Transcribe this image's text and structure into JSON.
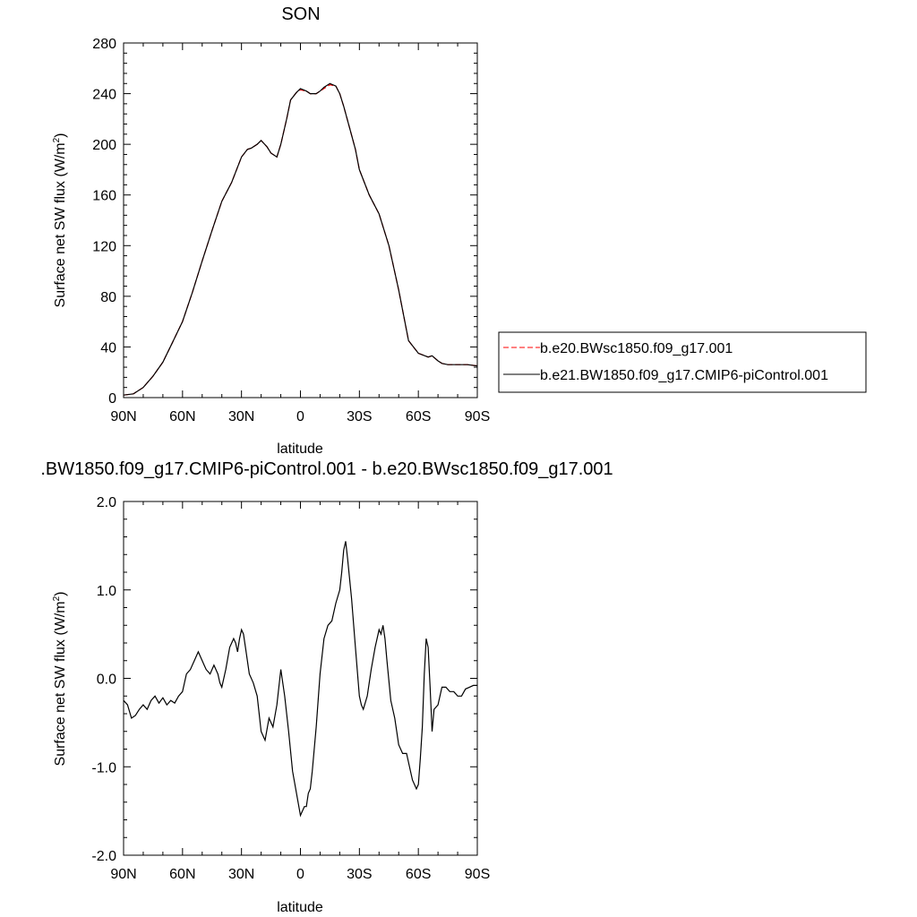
{
  "chart_data": [
    {
      "type": "line",
      "title": "SON",
      "xlabel": "latitude",
      "ylabel_main": "Surface net SW flux (W/m",
      "ylabel_sup": "2",
      "ylabel_close": ")",
      "xlim": [
        90,
        -90
      ],
      "ylim": [
        0,
        280
      ],
      "x_ticks": [
        {
          "value": 90,
          "label": "90N"
        },
        {
          "value": 60,
          "label": "60N"
        },
        {
          "value": 30,
          "label": "30N"
        },
        {
          "value": 0,
          "label": "0"
        },
        {
          "value": -30,
          "label": "30S"
        },
        {
          "value": -60,
          "label": "60S"
        },
        {
          "value": -90,
          "label": "90S"
        }
      ],
      "y_ticks": [
        {
          "value": 0,
          "label": "0"
        },
        {
          "value": 40,
          "label": "40"
        },
        {
          "value": 80,
          "label": "80"
        },
        {
          "value": 120,
          "label": "120"
        },
        {
          "value": 160,
          "label": "160"
        },
        {
          "value": 200,
          "label": "200"
        },
        {
          "value": 240,
          "label": "240"
        },
        {
          "value": 280,
          "label": "280"
        }
      ],
      "legend_placement": "right",
      "series": [
        {
          "name": "b.e20.BWsc1850.f09_g17.001",
          "color": "#ff0000",
          "dash": true,
          "x": [
            90,
            85,
            80,
            75,
            70,
            65,
            60,
            55,
            50,
            45,
            40,
            35,
            30,
            27,
            25,
            22,
            20,
            17,
            15,
            12,
            10,
            7,
            5,
            2,
            0,
            -3,
            -5,
            -8,
            -10,
            -12,
            -15,
            -18,
            -20,
            -22,
            -25,
            -28,
            -30,
            -35,
            -40,
            -45,
            -50,
            -55,
            -60,
            -65,
            -67,
            -70,
            -72,
            -75,
            -80,
            -85,
            -90
          ],
          "y": [
            2,
            3,
            8,
            17,
            28,
            44,
            60,
            83,
            108,
            132,
            155,
            170,
            190,
            196,
            197,
            200,
            203,
            198,
            193,
            190,
            200,
            220,
            235,
            241,
            243,
            242,
            240,
            240,
            242,
            244,
            247,
            246,
            240,
            230,
            213,
            196,
            180,
            160,
            145,
            120,
            85,
            45,
            35,
            32,
            33,
            29,
            27,
            26,
            26,
            26,
            25
          ]
        },
        {
          "name": "b.e21.BW1850.f09_g17.CMIP6-piControl.001",
          "color": "#000000",
          "dash": false,
          "x": [
            90,
            85,
            80,
            75,
            70,
            65,
            60,
            55,
            50,
            45,
            40,
            35,
            30,
            27,
            25,
            22,
            20,
            17,
            15,
            12,
            10,
            7,
            5,
            2,
            0,
            -3,
            -5,
            -8,
            -10,
            -12,
            -15,
            -18,
            -20,
            -22,
            -25,
            -28,
            -30,
            -35,
            -40,
            -45,
            -50,
            -55,
            -60,
            -65,
            -67,
            -70,
            -72,
            -75,
            -80,
            -85,
            -90
          ],
          "y": [
            2,
            3,
            8,
            17,
            28,
            44,
            60,
            83,
            108,
            132,
            155,
            170,
            190,
            196,
            197,
            200,
            203,
            198,
            193,
            190,
            200,
            220,
            235,
            241,
            244,
            242,
            240,
            240,
            242,
            245,
            248,
            246,
            240,
            230,
            213,
            196,
            180,
            160,
            145,
            120,
            85,
            45,
            35,
            32,
            33,
            29,
            27,
            26,
            26,
            26,
            25
          ]
        }
      ]
    },
    {
      "type": "line",
      "title": ".BW1850.f09_g17.CMIP6-piControl.001 - b.e20.BWsc1850.f09_g17.001",
      "xlabel": "latitude",
      "ylabel_main": "Surface net SW flux (W/m",
      "ylabel_sup": "2",
      "ylabel_close": ")",
      "xlim": [
        90,
        -90
      ],
      "ylim": [
        -2.0,
        2.0
      ],
      "x_ticks": [
        {
          "value": 90,
          "label": "90N"
        },
        {
          "value": 60,
          "label": "60N"
        },
        {
          "value": 30,
          "label": "30N"
        },
        {
          "value": 0,
          "label": "0"
        },
        {
          "value": -30,
          "label": "30S"
        },
        {
          "value": -60,
          "label": "60S"
        },
        {
          "value": -90,
          "label": "90S"
        }
      ],
      "y_ticks": [
        {
          "value": -2.0,
          "label": "-2.0"
        },
        {
          "value": -1.0,
          "label": "-1.0"
        },
        {
          "value": 0.0,
          "label": "0.0"
        },
        {
          "value": 1.0,
          "label": "1.0"
        },
        {
          "value": 2.0,
          "label": "2.0"
        }
      ],
      "series": [
        {
          "color": "#000000",
          "x": [
            90,
            88,
            86,
            84,
            82,
            80,
            78,
            76,
            74,
            72,
            70,
            68,
            66,
            64,
            62,
            60,
            58,
            56,
            54,
            52,
            50,
            49,
            48,
            46,
            44,
            42,
            41,
            40,
            38,
            36,
            34,
            33,
            32,
            31,
            30,
            29,
            28,
            26,
            24,
            22,
            20,
            18,
            16,
            14,
            12,
            10,
            8,
            6,
            4,
            2,
            0,
            -1,
            -2,
            -3,
            -4,
            -5,
            -6,
            -8,
            -10,
            -12,
            -14,
            -16,
            -18,
            -20,
            -21,
            -22,
            -23,
            -24,
            -26,
            -28,
            -30,
            -31,
            -32,
            -34,
            -36,
            -38,
            -40,
            -41,
            -42,
            -43,
            -44,
            -46,
            -48,
            -50,
            -52,
            -54,
            -56,
            -57,
            -58,
            -59,
            -60,
            -61,
            -62,
            -63,
            -64,
            -65,
            -66,
            -67,
            -68,
            -70,
            -72,
            -74,
            -76,
            -78,
            -80,
            -82,
            -84,
            -86,
            -88,
            -90
          ],
          "y": [
            -0.25,
            -0.3,
            -0.45,
            -0.42,
            -0.35,
            -0.3,
            -0.35,
            -0.25,
            -0.2,
            -0.28,
            -0.22,
            -0.3,
            -0.25,
            -0.28,
            -0.2,
            -0.15,
            0.05,
            0.1,
            0.2,
            0.3,
            0.2,
            0.15,
            0.1,
            0.05,
            0.15,
            0.05,
            -0.05,
            -0.1,
            0.1,
            0.35,
            0.45,
            0.4,
            0.3,
            0.45,
            0.55,
            0.5,
            0.35,
            0.05,
            -0.05,
            -0.2,
            -0.6,
            -0.7,
            -0.45,
            -0.55,
            -0.3,
            0.1,
            -0.2,
            -0.6,
            -1.05,
            -1.3,
            -1.55,
            -1.5,
            -1.45,
            -1.45,
            -1.3,
            -1.25,
            -1.05,
            -0.55,
            0.05,
            0.45,
            0.6,
            0.65,
            0.85,
            1.0,
            1.2,
            1.45,
            1.55,
            1.35,
            0.9,
            0.35,
            -0.2,
            -0.3,
            -0.35,
            -0.2,
            0.1,
            0.35,
            0.55,
            0.5,
            0.6,
            0.45,
            0.2,
            -0.25,
            -0.45,
            -0.75,
            -0.85,
            -0.85,
            -1.05,
            -1.15,
            -1.2,
            -1.25,
            -1.2,
            -0.9,
            -0.55,
            0.05,
            0.45,
            0.35,
            -0.1,
            -0.6,
            -0.35,
            -0.3,
            -0.1,
            -0.1,
            -0.15,
            -0.15,
            -0.2,
            -0.2,
            -0.12,
            -0.1,
            -0.08,
            -0.08
          ]
        }
      ]
    }
  ]
}
